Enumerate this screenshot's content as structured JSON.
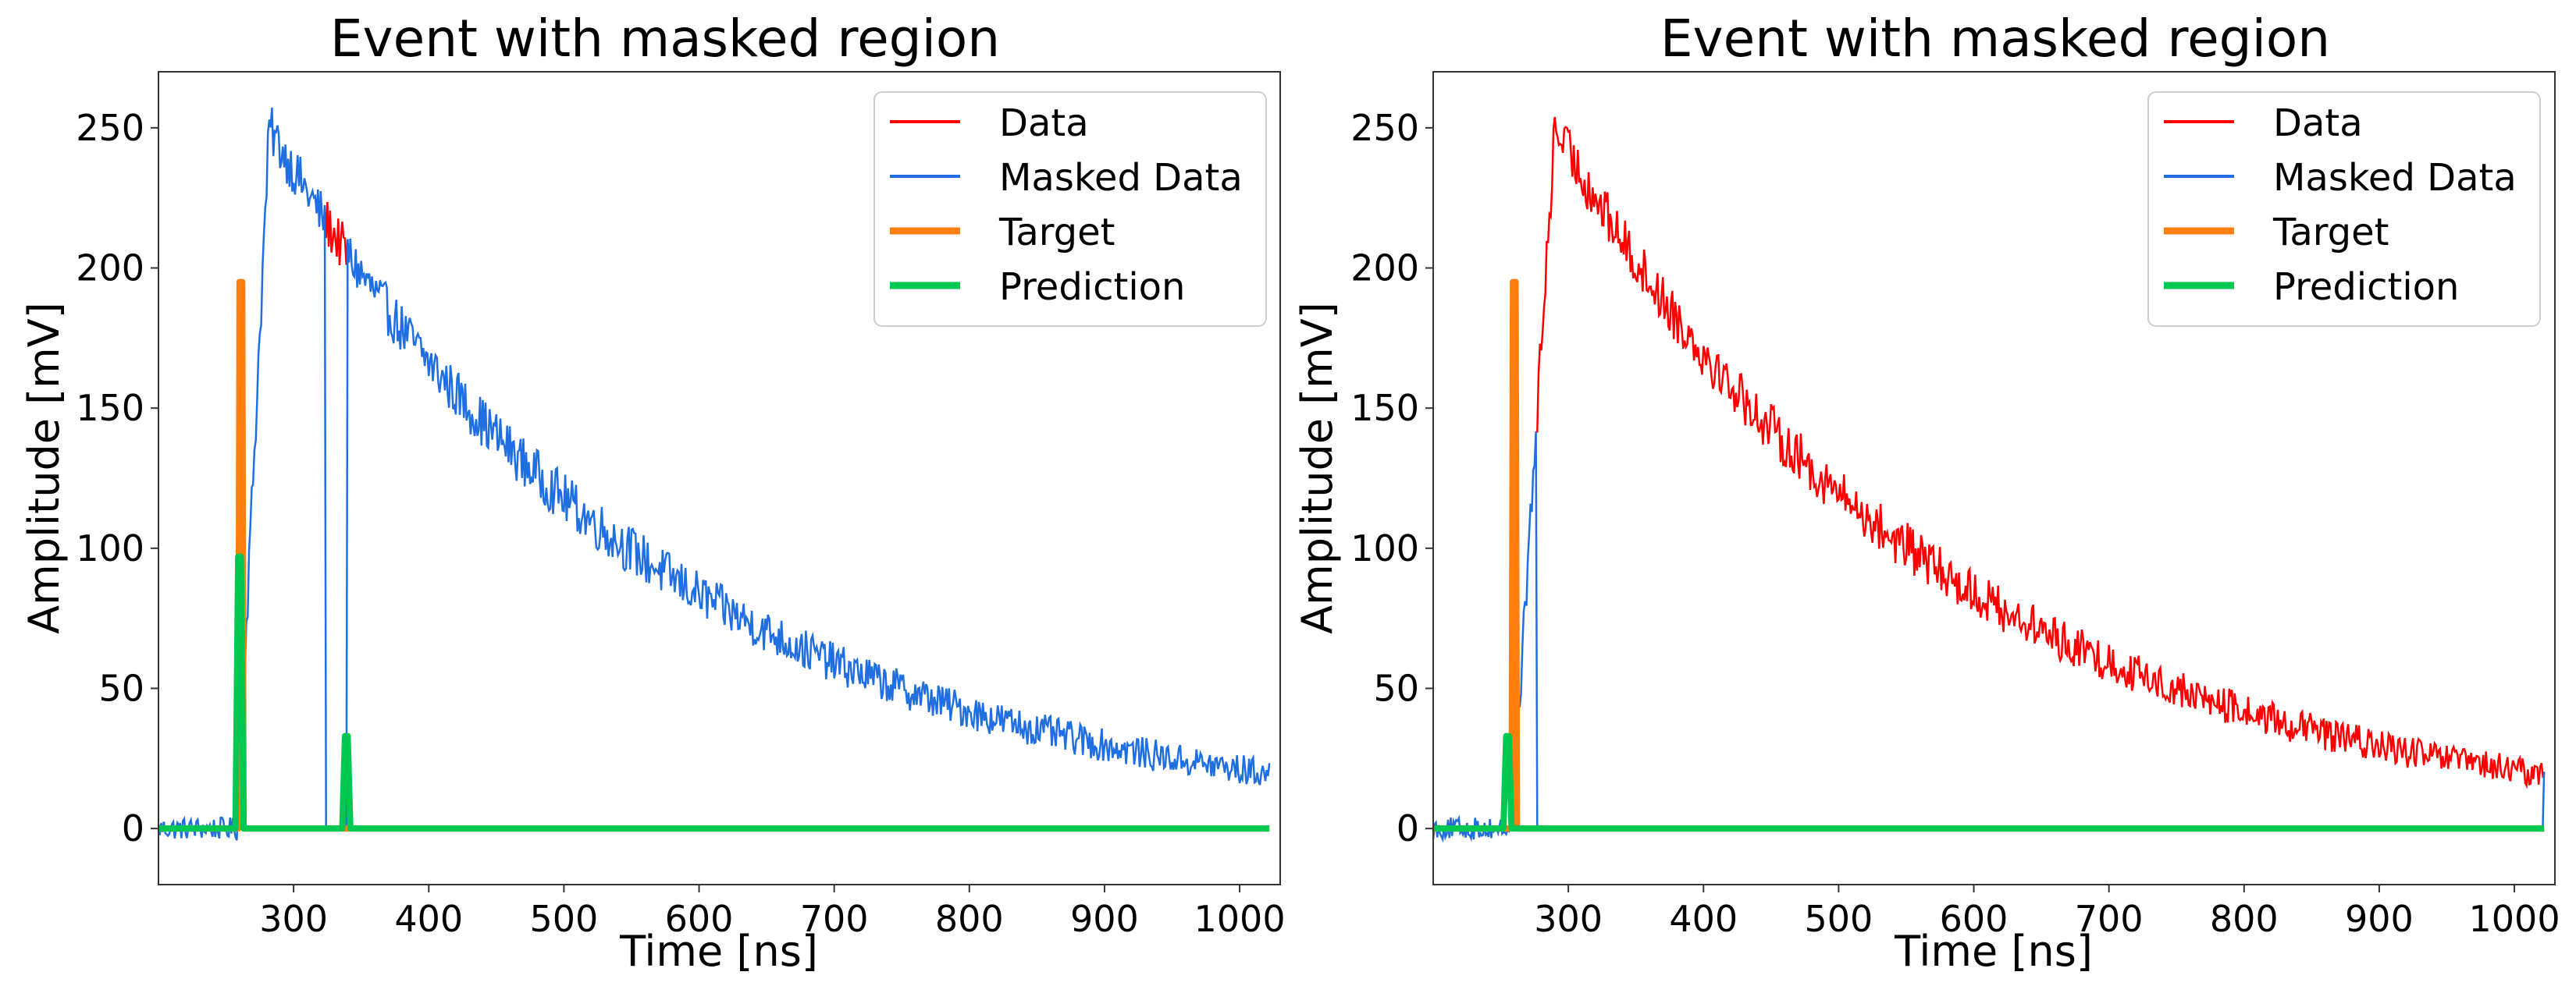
{
  "figure": {
    "background": "#ffffff"
  },
  "legend_labels": [
    "Data",
    "Masked Data",
    "Target",
    "Prediction"
  ],
  "colors": {
    "data": "#ff0000",
    "masked": "#1f6fe0",
    "target": "#ff7f0e",
    "prediction": "#00c853"
  },
  "chart_data": [
    {
      "type": "line",
      "title": "Event with masked region",
      "xlabel": "Time [ns]",
      "ylabel": "Amplitude [mV]",
      "xlim": [
        200,
        1030
      ],
      "ylim": [
        -20,
        270
      ],
      "xticks": [
        300,
        400,
        500,
        600,
        700,
        800,
        900,
        1000
      ],
      "yticks": [
        0,
        50,
        100,
        150,
        200,
        250
      ],
      "legend_position": "top-right",
      "pulse": {
        "rise_start": 258,
        "rise_end": 282,
        "peak": 250,
        "tau": 290,
        "noise": 9
      },
      "mask_region": [
        323,
        340
      ],
      "masked_region_values": [
        205,
        160
      ],
      "target_spike": {
        "x": 260,
        "height": 195
      },
      "prediction_spikes": [
        {
          "x": 260,
          "height": 97
        },
        {
          "x": 339,
          "height": 33
        }
      ],
      "series": [
        {
          "name": "Data",
          "role": "data"
        },
        {
          "name": "Masked Data",
          "role": "masked"
        },
        {
          "name": "Target",
          "role": "target"
        },
        {
          "name": "Prediction",
          "role": "prediction"
        }
      ]
    },
    {
      "type": "line",
      "title": "Event with masked region",
      "xlabel": "Time [ns]",
      "ylabel": "Amplitude [mV]",
      "xlim": [
        200,
        1030
      ],
      "ylim": [
        -20,
        270
      ],
      "xticks": [
        300,
        400,
        500,
        600,
        700,
        800,
        900,
        1000
      ],
      "yticks": [
        0,
        50,
        100,
        150,
        200,
        250
      ],
      "legend_position": "top-right",
      "pulse": {
        "rise_start": 258,
        "rise_end": 290,
        "peak": 250,
        "tau": 285,
        "noise": 9
      },
      "mask_region": [
        276,
        1022
      ],
      "masked_region_values": [
        250,
        0
      ],
      "target_spike": {
        "x": 259,
        "height": 195
      },
      "prediction_spikes": [
        {
          "x": 255,
          "height": 33
        }
      ],
      "series": [
        {
          "name": "Data",
          "role": "data"
        },
        {
          "name": "Masked Data",
          "role": "masked"
        },
        {
          "name": "Target",
          "role": "target"
        },
        {
          "name": "Prediction",
          "role": "prediction"
        }
      ]
    }
  ]
}
